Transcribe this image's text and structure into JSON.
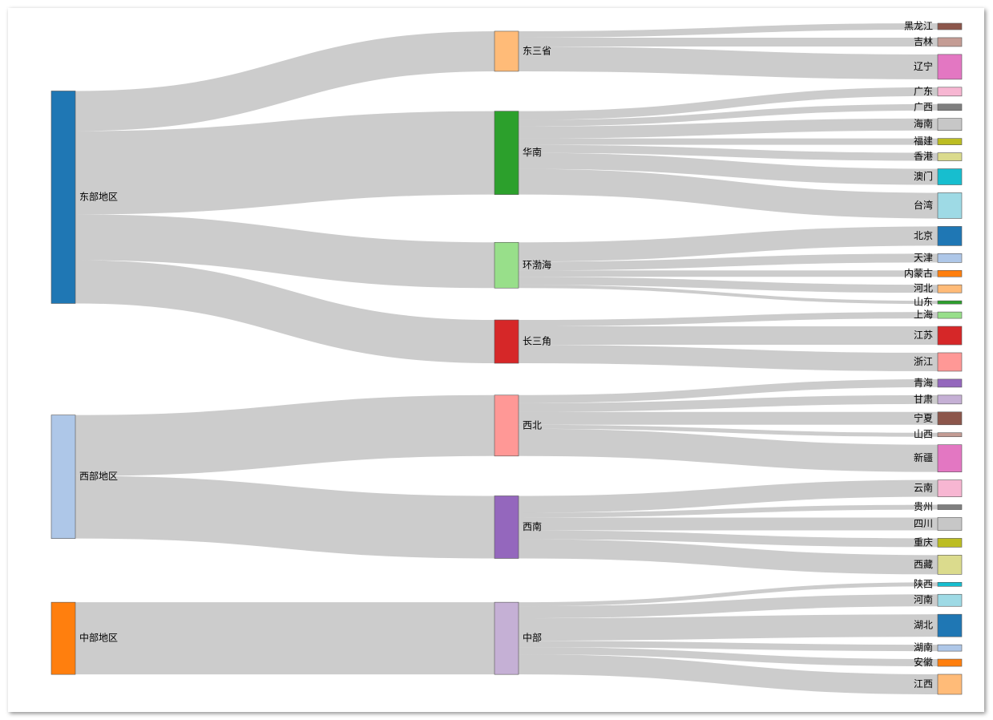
{
  "chart_data": {
    "type": "sankey",
    "nodes": [
      {
        "name": "东部地区",
        "color": "#1f77b4"
      },
      {
        "name": "西部地区",
        "color": "#aec7e8"
      },
      {
        "name": "中部地区",
        "color": "#ff7f0e"
      },
      {
        "name": "东三省",
        "color": "#ffbb78"
      },
      {
        "name": "华南",
        "color": "#2ca02c"
      },
      {
        "name": "环渤海",
        "color": "#98df8a"
      },
      {
        "name": "长三角",
        "color": "#d62728"
      },
      {
        "name": "西北",
        "color": "#ff9896"
      },
      {
        "name": "西南",
        "color": "#9467bd"
      },
      {
        "name": "中部",
        "color": "#c5b0d5"
      },
      {
        "name": "黑龙江",
        "color": "#8c564b"
      },
      {
        "name": "吉林",
        "color": "#c49c94"
      },
      {
        "name": "辽宁",
        "color": "#e377c2"
      },
      {
        "name": "广东",
        "color": "#f7b6d2"
      },
      {
        "name": "广西",
        "color": "#7f7f7f"
      },
      {
        "name": "海南",
        "color": "#c7c7c7"
      },
      {
        "name": "福建",
        "color": "#bcbd22"
      },
      {
        "name": "香港",
        "color": "#dbdb8d"
      },
      {
        "name": "澳门",
        "color": "#17becf"
      },
      {
        "name": "台湾",
        "color": "#9edae5"
      },
      {
        "name": "北京",
        "color": "#1f77b4"
      },
      {
        "name": "天津",
        "color": "#aec7e8"
      },
      {
        "name": "内蒙古",
        "color": "#ff7f0e"
      },
      {
        "name": "河北",
        "color": "#ffbb78"
      },
      {
        "name": "山东",
        "color": "#2ca02c"
      },
      {
        "name": "上海",
        "color": "#98df8a"
      },
      {
        "name": "江苏",
        "color": "#d62728"
      },
      {
        "name": "浙江",
        "color": "#ff9896"
      },
      {
        "name": "青海",
        "color": "#9467bd"
      },
      {
        "name": "甘肃",
        "color": "#c5b0d5"
      },
      {
        "name": "宁夏",
        "color": "#8c564b"
      },
      {
        "name": "山西",
        "color": "#c49c94"
      },
      {
        "name": "新疆",
        "color": "#e377c2"
      },
      {
        "name": "云南",
        "color": "#f7b6d2"
      },
      {
        "name": "贵州",
        "color": "#7f7f7f"
      },
      {
        "name": "四川",
        "color": "#c7c7c7"
      },
      {
        "name": "重庆",
        "color": "#bcbd22"
      },
      {
        "name": "西藏",
        "color": "#dbdb8d"
      },
      {
        "name": "陕西",
        "color": "#17becf"
      },
      {
        "name": "河南",
        "color": "#9edae5"
      },
      {
        "name": "湖北",
        "color": "#1f77b4"
      },
      {
        "name": "湖南",
        "color": "#aec7e8"
      },
      {
        "name": "安徽",
        "color": "#ff7f0e"
      },
      {
        "name": "江西",
        "color": "#ffbb78"
      }
    ],
    "links": [
      {
        "source": 0,
        "target": 3,
        "value": 50
      },
      {
        "source": 0,
        "target": 4,
        "value": 104
      },
      {
        "source": 0,
        "target": 5,
        "value": 57
      },
      {
        "source": 0,
        "target": 6,
        "value": 54
      },
      {
        "source": 1,
        "target": 7,
        "value": 76
      },
      {
        "source": 1,
        "target": 8,
        "value": 78
      },
      {
        "source": 2,
        "target": 9,
        "value": 90
      },
      {
        "source": 3,
        "target": 10,
        "value": 8
      },
      {
        "source": 3,
        "target": 11,
        "value": 11
      },
      {
        "source": 3,
        "target": 12,
        "value": 31
      },
      {
        "source": 4,
        "target": 13,
        "value": 11
      },
      {
        "source": 4,
        "target": 14,
        "value": 8
      },
      {
        "source": 4,
        "target": 15,
        "value": 15
      },
      {
        "source": 4,
        "target": 16,
        "value": 8
      },
      {
        "source": 4,
        "target": 17,
        "value": 10
      },
      {
        "source": 4,
        "target": 18,
        "value": 20
      },
      {
        "source": 4,
        "target": 19,
        "value": 32
      },
      {
        "source": 5,
        "target": 20,
        "value": 24
      },
      {
        "source": 5,
        "target": 21,
        "value": 11
      },
      {
        "source": 5,
        "target": 22,
        "value": 8
      },
      {
        "source": 5,
        "target": 23,
        "value": 10
      },
      {
        "source": 5,
        "target": 24,
        "value": 4
      },
      {
        "source": 6,
        "target": 25,
        "value": 8
      },
      {
        "source": 6,
        "target": 26,
        "value": 23
      },
      {
        "source": 6,
        "target": 27,
        "value": 23
      },
      {
        "source": 7,
        "target": 28,
        "value": 10
      },
      {
        "source": 7,
        "target": 29,
        "value": 11
      },
      {
        "source": 7,
        "target": 30,
        "value": 16
      },
      {
        "source": 7,
        "target": 31,
        "value": 5
      },
      {
        "source": 7,
        "target": 32,
        "value": 34
      },
      {
        "source": 8,
        "target": 33,
        "value": 21
      },
      {
        "source": 8,
        "target": 34,
        "value": 6
      },
      {
        "source": 8,
        "target": 35,
        "value": 16
      },
      {
        "source": 8,
        "target": 36,
        "value": 11
      },
      {
        "source": 8,
        "target": 37,
        "value": 24
      },
      {
        "source": 9,
        "target": 38,
        "value": 5
      },
      {
        "source": 9,
        "target": 39,
        "value": 15
      },
      {
        "source": 9,
        "target": 40,
        "value": 28
      },
      {
        "source": 9,
        "target": 41,
        "value": 8
      },
      {
        "source": 9,
        "target": 42,
        "value": 9
      },
      {
        "source": 9,
        "target": 43,
        "value": 25
      }
    ]
  }
}
